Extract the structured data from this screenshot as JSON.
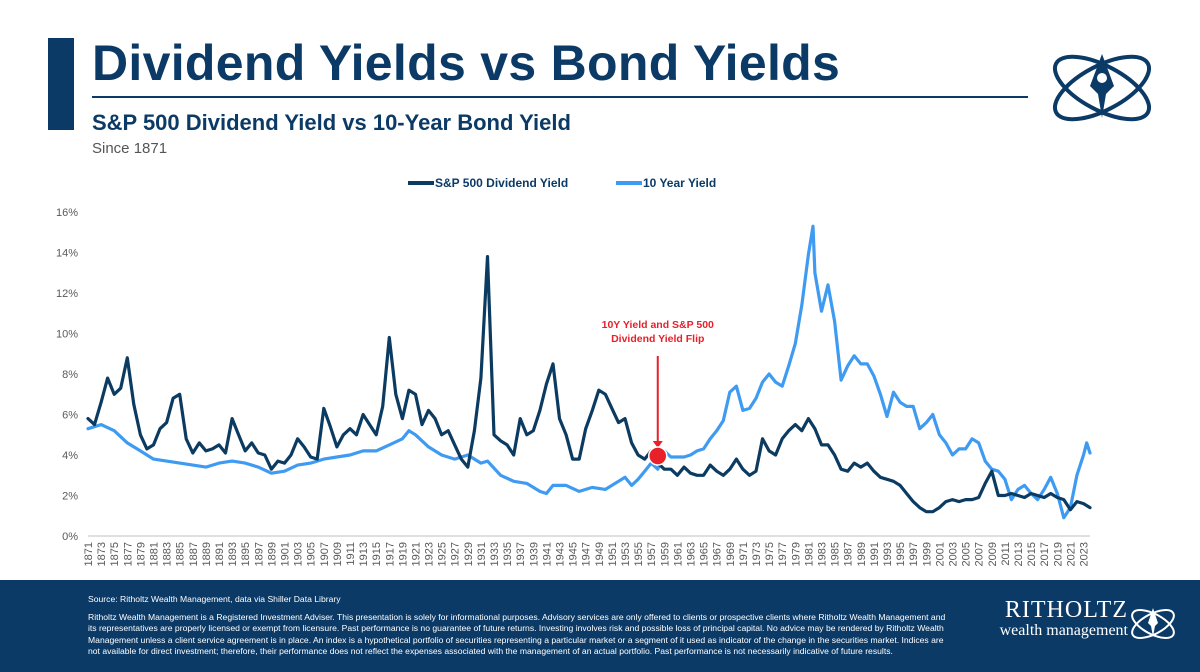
{
  "header": {
    "title": "Dividend Yields vs Bond Yields",
    "subtitle": "S&P 500 Dividend Yield vs 10-Year Bond Yield",
    "since": "Since 1871"
  },
  "colors": {
    "navy": "#0b3a66",
    "series_div": "#0c3b62",
    "series_bond": "#3f9bf2",
    "annotation": "#e8202a"
  },
  "icons": {
    "logo": "ritholtz-rocket-orbit-logo"
  },
  "chart_data": {
    "type": "line",
    "title": "",
    "xlabel": "",
    "ylabel": "",
    "ylim": [
      0,
      16
    ],
    "xlim": [
      1871,
      2024
    ],
    "y_ticks": [
      "0%",
      "2%",
      "4%",
      "6%",
      "8%",
      "10%",
      "12%",
      "14%",
      "16%"
    ],
    "x_ticks": [
      "1871",
      "1873",
      "1875",
      "1877",
      "1879",
      "1881",
      "1883",
      "1885",
      "1887",
      "1889",
      "1891",
      "1893",
      "1895",
      "1897",
      "1899",
      "1901",
      "1903",
      "1905",
      "1907",
      "1909",
      "1911",
      "1913",
      "1915",
      "1917",
      "1919",
      "1921",
      "1923",
      "1925",
      "1927",
      "1929",
      "1931",
      "1933",
      "1935",
      "1937",
      "1939",
      "1941",
      "1943",
      "1945",
      "1947",
      "1949",
      "1951",
      "1953",
      "1955",
      "1957",
      "1959",
      "1961",
      "1963",
      "1965",
      "1967",
      "1969",
      "1971",
      "1973",
      "1975",
      "1977",
      "1979",
      "1981",
      "1983",
      "1985",
      "1987",
      "1989",
      "1991",
      "1993",
      "1995",
      "1997",
      "1999",
      "2001",
      "2003",
      "2005",
      "2007",
      "2009",
      "2011",
      "2013",
      "2015",
      "2017",
      "2019",
      "2021",
      "2023"
    ],
    "legend_position": "top-center",
    "grid": false,
    "series": [
      {
        "name": "S&P 500 Dividend Yield",
        "color": "#0c3b62",
        "points": [
          [
            1871,
            5.8
          ],
          [
            1872,
            5.5
          ],
          [
            1873,
            6.6
          ],
          [
            1874,
            7.8
          ],
          [
            1875,
            7.0
          ],
          [
            1876,
            7.3
          ],
          [
            1877,
            8.8
          ],
          [
            1878,
            6.5
          ],
          [
            1879,
            5.0
          ],
          [
            1880,
            4.3
          ],
          [
            1881,
            4.5
          ],
          [
            1882,
            5.3
          ],
          [
            1883,
            5.6
          ],
          [
            1884,
            6.8
          ],
          [
            1885,
            7.0
          ],
          [
            1886,
            4.8
          ],
          [
            1887,
            4.1
          ],
          [
            1888,
            4.6
          ],
          [
            1889,
            4.2
          ],
          [
            1890,
            4.3
          ],
          [
            1891,
            4.5
          ],
          [
            1892,
            4.1
          ],
          [
            1893,
            5.8
          ],
          [
            1894,
            5.0
          ],
          [
            1895,
            4.2
          ],
          [
            1896,
            4.6
          ],
          [
            1897,
            4.1
          ],
          [
            1898,
            4.0
          ],
          [
            1899,
            3.3
          ],
          [
            1900,
            3.7
          ],
          [
            1901,
            3.6
          ],
          [
            1902,
            4.0
          ],
          [
            1903,
            4.8
          ],
          [
            1904,
            4.4
          ],
          [
            1905,
            3.9
          ],
          [
            1906,
            3.8
          ],
          [
            1907,
            6.3
          ],
          [
            1908,
            5.4
          ],
          [
            1909,
            4.4
          ],
          [
            1910,
            5.0
          ],
          [
            1911,
            5.3
          ],
          [
            1912,
            5.0
          ],
          [
            1913,
            6.0
          ],
          [
            1914,
            5.5
          ],
          [
            1915,
            5.0
          ],
          [
            1916,
            6.4
          ],
          [
            1917,
            9.8
          ],
          [
            1918,
            7.0
          ],
          [
            1919,
            5.8
          ],
          [
            1920,
            7.2
          ],
          [
            1921,
            7.0
          ],
          [
            1922,
            5.5
          ],
          [
            1923,
            6.2
          ],
          [
            1924,
            5.8
          ],
          [
            1925,
            5.0
          ],
          [
            1926,
            5.2
          ],
          [
            1927,
            4.5
          ],
          [
            1928,
            3.8
          ],
          [
            1929,
            3.4
          ],
          [
            1930,
            5.2
          ],
          [
            1931,
            7.8
          ],
          [
            1932,
            13.8
          ],
          [
            1933,
            5.0
          ],
          [
            1934,
            4.7
          ],
          [
            1935,
            4.5
          ],
          [
            1936,
            4.0
          ],
          [
            1937,
            5.8
          ],
          [
            1938,
            5.0
          ],
          [
            1939,
            5.2
          ],
          [
            1940,
            6.2
          ],
          [
            1941,
            7.5
          ],
          [
            1942,
            8.5
          ],
          [
            1943,
            5.8
          ],
          [
            1944,
            5.0
          ],
          [
            1945,
            3.8
          ],
          [
            1946,
            3.8
          ],
          [
            1947,
            5.3
          ],
          [
            1948,
            6.2
          ],
          [
            1949,
            7.2
          ],
          [
            1950,
            7.0
          ],
          [
            1951,
            6.3
          ],
          [
            1952,
            5.6
          ],
          [
            1953,
            5.8
          ],
          [
            1954,
            4.6
          ],
          [
            1955,
            4.0
          ],
          [
            1956,
            3.8
          ],
          [
            1957,
            4.2
          ],
          [
            1958,
            3.6
          ],
          [
            1959,
            3.3
          ],
          [
            1960,
            3.3
          ],
          [
            1961,
            3.0
          ],
          [
            1962,
            3.4
          ],
          [
            1963,
            3.1
          ],
          [
            1964,
            3.0
          ],
          [
            1965,
            3.0
          ],
          [
            1966,
            3.5
          ],
          [
            1967,
            3.2
          ],
          [
            1968,
            3.0
          ],
          [
            1969,
            3.3
          ],
          [
            1970,
            3.8
          ],
          [
            1971,
            3.3
          ],
          [
            1972,
            3.0
          ],
          [
            1973,
            3.2
          ],
          [
            1974,
            4.8
          ],
          [
            1975,
            4.2
          ],
          [
            1976,
            4.0
          ],
          [
            1977,
            4.8
          ],
          [
            1978,
            5.2
          ],
          [
            1979,
            5.5
          ],
          [
            1980,
            5.2
          ],
          [
            1981,
            5.8
          ],
          [
            1982,
            5.3
          ],
          [
            1983,
            4.5
          ],
          [
            1984,
            4.5
          ],
          [
            1985,
            4.0
          ],
          [
            1986,
            3.3
          ],
          [
            1987,
            3.2
          ],
          [
            1988,
            3.6
          ],
          [
            1989,
            3.4
          ],
          [
            1990,
            3.6
          ],
          [
            1991,
            3.2
          ],
          [
            1992,
            2.9
          ],
          [
            1993,
            2.8
          ],
          [
            1994,
            2.7
          ],
          [
            1995,
            2.5
          ],
          [
            1996,
            2.1
          ],
          [
            1997,
            1.7
          ],
          [
            1998,
            1.4
          ],
          [
            1999,
            1.2
          ],
          [
            2000,
            1.2
          ],
          [
            2001,
            1.4
          ],
          [
            2002,
            1.7
          ],
          [
            2003,
            1.8
          ],
          [
            2004,
            1.7
          ],
          [
            2005,
            1.8
          ],
          [
            2006,
            1.8
          ],
          [
            2007,
            1.9
          ],
          [
            2008,
            2.6
          ],
          [
            2009,
            3.2
          ],
          [
            2010,
            2.0
          ],
          [
            2011,
            2.0
          ],
          [
            2012,
            2.1
          ],
          [
            2013,
            2.0
          ],
          [
            2014,
            1.9
          ],
          [
            2015,
            2.1
          ],
          [
            2016,
            2.0
          ],
          [
            2017,
            1.9
          ],
          [
            2018,
            2.1
          ],
          [
            2019,
            1.9
          ],
          [
            2020,
            1.8
          ],
          [
            2021,
            1.3
          ],
          [
            2022,
            1.7
          ],
          [
            2023,
            1.6
          ],
          [
            2024,
            1.4
          ]
        ]
      },
      {
        "name": "10 Year Yield",
        "color": "#3f9bf2",
        "points": [
          [
            1871,
            5.3
          ],
          [
            1873,
            5.5
          ],
          [
            1875,
            5.2
          ],
          [
            1877,
            4.6
          ],
          [
            1879,
            4.2
          ],
          [
            1881,
            3.8
          ],
          [
            1883,
            3.7
          ],
          [
            1885,
            3.6
          ],
          [
            1887,
            3.5
          ],
          [
            1889,
            3.4
          ],
          [
            1891,
            3.6
          ],
          [
            1893,
            3.7
          ],
          [
            1895,
            3.6
          ],
          [
            1897,
            3.4
          ],
          [
            1899,
            3.1
          ],
          [
            1901,
            3.2
          ],
          [
            1903,
            3.5
          ],
          [
            1905,
            3.6
          ],
          [
            1907,
            3.8
          ],
          [
            1909,
            3.9
          ],
          [
            1911,
            4.0
          ],
          [
            1913,
            4.2
          ],
          [
            1915,
            4.2
          ],
          [
            1917,
            4.5
          ],
          [
            1919,
            4.8
          ],
          [
            1920,
            5.2
          ],
          [
            1921,
            5.0
          ],
          [
            1923,
            4.4
          ],
          [
            1925,
            4.0
          ],
          [
            1927,
            3.8
          ],
          [
            1929,
            4.0
          ],
          [
            1931,
            3.6
          ],
          [
            1932,
            3.7
          ],
          [
            1934,
            3.0
          ],
          [
            1936,
            2.7
          ],
          [
            1938,
            2.6
          ],
          [
            1940,
            2.2
          ],
          [
            1941,
            2.1
          ],
          [
            1942,
            2.5
          ],
          [
            1944,
            2.5
          ],
          [
            1946,
            2.2
          ],
          [
            1948,
            2.4
          ],
          [
            1950,
            2.3
          ],
          [
            1952,
            2.7
          ],
          [
            1953,
            2.9
          ],
          [
            1954,
            2.5
          ],
          [
            1955,
            2.8
          ],
          [
            1956,
            3.2
          ],
          [
            1957,
            3.6
          ],
          [
            1958,
            3.3
          ],
          [
            1959,
            4.2
          ],
          [
            1960,
            3.9
          ],
          [
            1961,
            3.9
          ],
          [
            1962,
            3.9
          ],
          [
            1963,
            4.0
          ],
          [
            1964,
            4.2
          ],
          [
            1965,
            4.3
          ],
          [
            1966,
            4.8
          ],
          [
            1967,
            5.2
          ],
          [
            1968,
            5.7
          ],
          [
            1969,
            7.1
          ],
          [
            1970,
            7.4
          ],
          [
            1971,
            6.2
          ],
          [
            1972,
            6.3
          ],
          [
            1973,
            6.8
          ],
          [
            1974,
            7.6
          ],
          [
            1975,
            8.0
          ],
          [
            1976,
            7.6
          ],
          [
            1977,
            7.4
          ],
          [
            1978,
            8.4
          ],
          [
            1979,
            9.5
          ],
          [
            1980,
            11.4
          ],
          [
            1981,
            13.9
          ],
          [
            1981.7,
            15.3
          ],
          [
            1982,
            13.0
          ],
          [
            1983,
            11.1
          ],
          [
            1984,
            12.4
          ],
          [
            1985,
            10.6
          ],
          [
            1986,
            7.7
          ],
          [
            1987,
            8.4
          ],
          [
            1988,
            8.9
          ],
          [
            1989,
            8.5
          ],
          [
            1990,
            8.5
          ],
          [
            1991,
            7.9
          ],
          [
            1992,
            7.0
          ],
          [
            1993,
            5.9
          ],
          [
            1994,
            7.1
          ],
          [
            1995,
            6.6
          ],
          [
            1996,
            6.4
          ],
          [
            1997,
            6.4
          ],
          [
            1998,
            5.3
          ],
          [
            1999,
            5.6
          ],
          [
            2000,
            6.0
          ],
          [
            2001,
            5.0
          ],
          [
            2002,
            4.6
          ],
          [
            2003,
            4.0
          ],
          [
            2004,
            4.3
          ],
          [
            2005,
            4.3
          ],
          [
            2006,
            4.8
          ],
          [
            2007,
            4.6
          ],
          [
            2008,
            3.7
          ],
          [
            2009,
            3.3
          ],
          [
            2010,
            3.2
          ],
          [
            2011,
            2.8
          ],
          [
            2012,
            1.8
          ],
          [
            2013,
            2.3
          ],
          [
            2014,
            2.5
          ],
          [
            2015,
            2.1
          ],
          [
            2016,
            1.8
          ],
          [
            2017,
            2.3
          ],
          [
            2018,
            2.9
          ],
          [
            2019,
            2.1
          ],
          [
            2020,
            0.9
          ],
          [
            2021,
            1.4
          ],
          [
            2022,
            3.0
          ],
          [
            2023,
            4.0
          ],
          [
            2023.5,
            4.6
          ],
          [
            2024,
            4.1
          ]
        ]
      }
    ],
    "annotations": [
      {
        "text_lines": [
          "10Y Yield and S&P 500",
          "Dividend Yield Flip"
        ],
        "x": 1958,
        "y": 3.95,
        "color": "#e8202a"
      }
    ]
  },
  "footer": {
    "source": "Source: Ritholtz Wealth Management, data via Shiller Data Library",
    "disclaimer": "Ritholtz Wealth Management is a Registered Investment Adviser. This presentation is solely for informational purposes. Advisory services are only offered to clients or prospective clients where Ritholtz Wealth Management and its representatives are properly licensed or exempt from licensure. Past performance is no guarantee of future returns. Investing involves risk and possible loss of principal capital. No advice may be rendered by Ritholtz Wealth Management unless a client service agreement is in place. An index is a hypothetical portfolio of securities representing a particular market or a segment of it used as indicator of the change in the securities market. Indices are not available for direct investment; therefore, their performance does not reflect the expenses associated with the management of an actual portfolio. Past performance is not necessarily indicative of future results.",
    "brand_name": "RITHOLTZ",
    "brand_tagline": "wealth management"
  }
}
